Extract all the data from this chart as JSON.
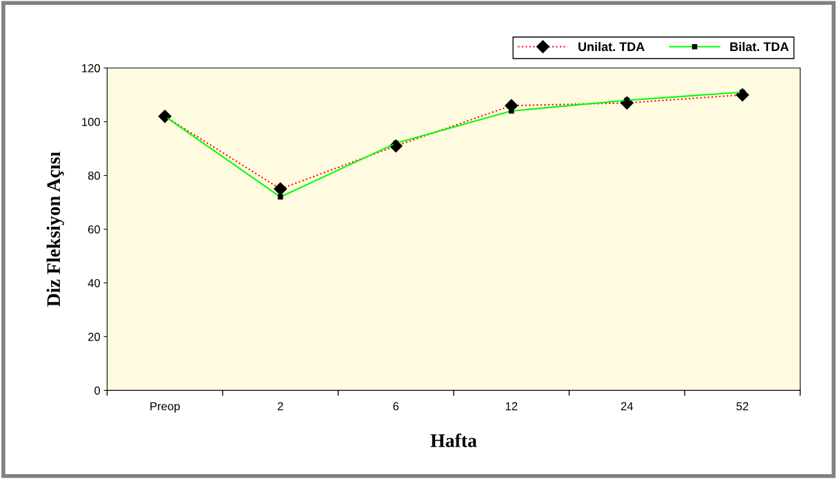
{
  "chart_data": {
    "type": "line",
    "xlabel": "Hafta",
    "ylabel": "Diz Fleksiyon Açısı",
    "categories": [
      "Preop",
      "2",
      "6",
      "12",
      "24",
      "52"
    ],
    "series": [
      {
        "name": "Unilat. TDA",
        "color": "#ff0000",
        "values": [
          102,
          75,
          91,
          106,
          107,
          110
        ],
        "marker": "diamond",
        "line_style": "dotted"
      },
      {
        "name": "Bilat. TDA",
        "color": "#00ff00",
        "values": [
          102,
          72,
          92,
          104,
          108,
          111
        ],
        "marker": "square",
        "line_style": "solid"
      }
    ],
    "ylim": [
      0,
      120
    ],
    "yticks": [
      0,
      20,
      40,
      60,
      80,
      100,
      120
    ],
    "grid": false,
    "legend": "top right"
  }
}
